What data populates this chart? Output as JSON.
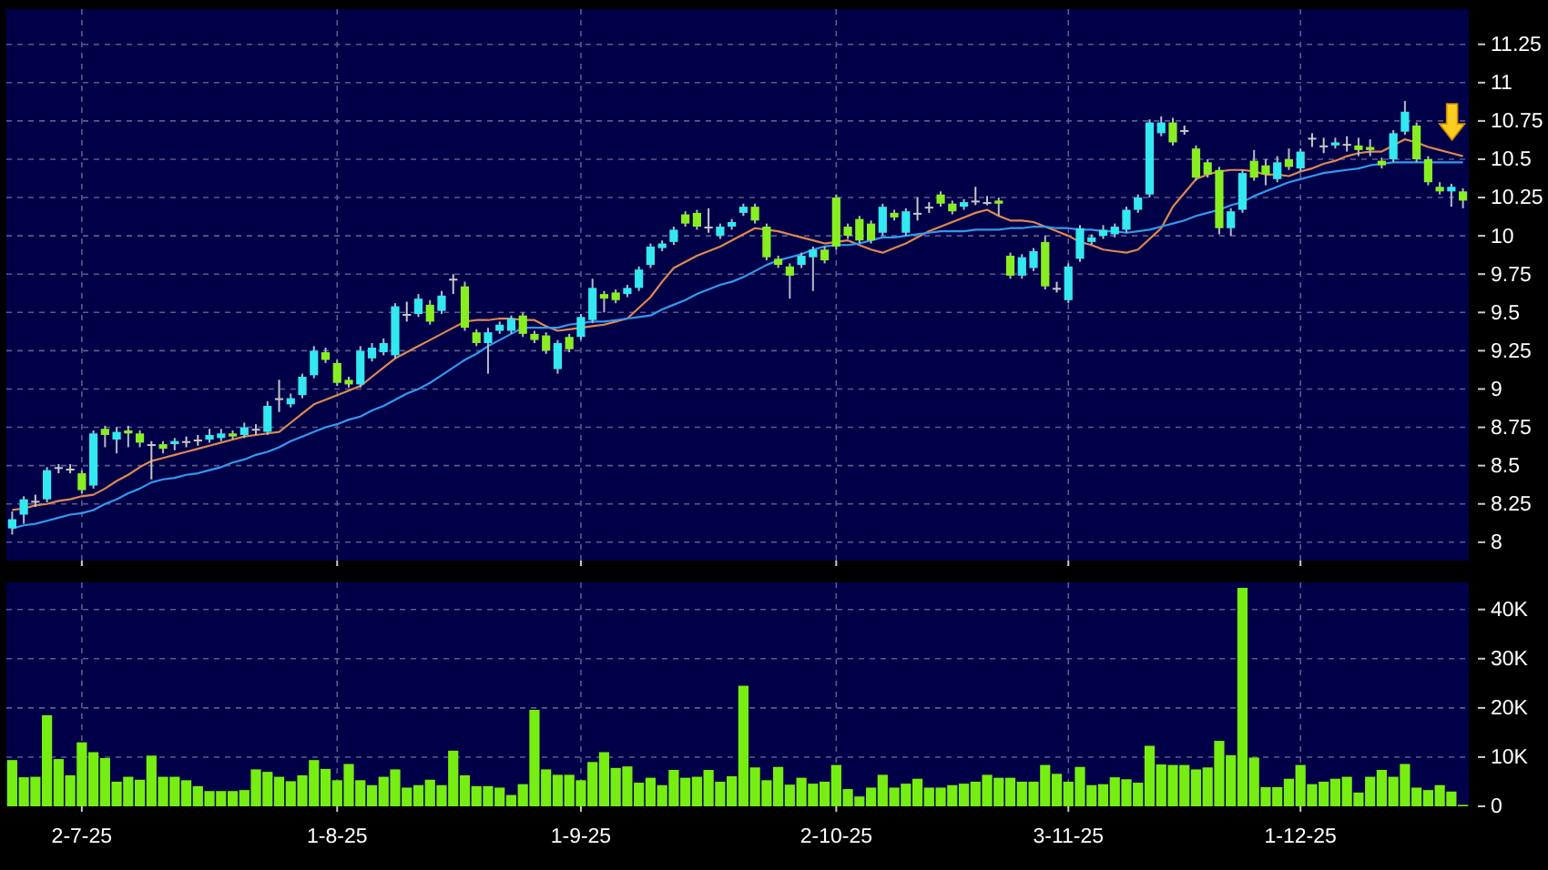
{
  "chart_data": [
    {
      "type": "candlestick",
      "grid": true,
      "tick_labels": "y",
      "categories": [
        null,
        null,
        null,
        null,
        null,
        null,
        null,
        null,
        null,
        null,
        null,
        null,
        null,
        null,
        null,
        null,
        null,
        null,
        null,
        null,
        null,
        null,
        null,
        null,
        null,
        null,
        null,
        null,
        null,
        null,
        null,
        null,
        null,
        null,
        null,
        null,
        null,
        null,
        null,
        null,
        null,
        null,
        null,
        null,
        null,
        null,
        null,
        null,
        null,
        null,
        null,
        null,
        null,
        null,
        null,
        null,
        null,
        null,
        null,
        null,
        null,
        null,
        null,
        null,
        null,
        null,
        null,
        null,
        null,
        null,
        null,
        null,
        null,
        null,
        null,
        null,
        null,
        null,
        null,
        null,
        null,
        null,
        null,
        null,
        null,
        null,
        null,
        null,
        null,
        null,
        null,
        null,
        null,
        null,
        null,
        null,
        null,
        null,
        null,
        null,
        null,
        null,
        null,
        null,
        null,
        null,
        null,
        null,
        null,
        null,
        null,
        null,
        null,
        null,
        null,
        null,
        null,
        null,
        null,
        null,
        null,
        null,
        null,
        null,
        null,
        null
      ],
      "ylim": [
        7.88,
        11.48
      ],
      "yticks": [
        8,
        8.25,
        8.5,
        8.75,
        9,
        9.25,
        9.5,
        9.75,
        10,
        10.25,
        10.5,
        10.75,
        11,
        11.25
      ],
      "ohlc": [
        [
          8.09,
          8.2,
          8.05,
          8.15
        ],
        [
          8.18,
          8.3,
          8.12,
          8.28
        ],
        [
          8.27,
          8.31,
          8.23,
          8.27
        ],
        [
          8.28,
          8.49,
          8.26,
          8.47
        ],
        [
          8.49,
          8.51,
          8.45,
          8.49
        ],
        [
          8.48,
          8.51,
          8.45,
          8.48
        ],
        [
          8.45,
          8.47,
          8.32,
          8.34
        ],
        [
          8.37,
          8.73,
          8.35,
          8.71
        ],
        [
          8.74,
          8.76,
          8.62,
          8.7
        ],
        [
          8.67,
          8.75,
          8.58,
          8.72
        ],
        [
          8.73,
          8.76,
          8.62,
          8.71
        ],
        [
          8.71,
          8.73,
          8.62,
          8.65
        ],
        [
          8.64,
          8.66,
          8.41,
          8.64
        ],
        [
          8.64,
          8.66,
          8.58,
          8.61
        ],
        [
          8.64,
          8.68,
          8.6,
          8.66
        ],
        [
          8.66,
          8.69,
          8.62,
          8.66
        ],
        [
          8.67,
          8.7,
          8.63,
          8.67
        ],
        [
          8.67,
          8.74,
          8.65,
          8.7
        ],
        [
          8.68,
          8.74,
          8.66,
          8.71
        ],
        [
          8.71,
          8.73,
          8.67,
          8.69
        ],
        [
          8.7,
          8.78,
          8.68,
          8.75
        ],
        [
          8.74,
          8.77,
          8.7,
          8.74
        ],
        [
          8.72,
          8.92,
          8.7,
          8.89
        ],
        [
          8.94,
          9.06,
          8.85,
          8.94
        ],
        [
          8.9,
          8.97,
          8.88,
          8.94
        ],
        [
          8.96,
          9.1,
          8.94,
          9.08
        ],
        [
          9.09,
          9.28,
          9.07,
          9.25
        ],
        [
          9.24,
          9.27,
          9.17,
          9.19
        ],
        [
          9.17,
          9.19,
          9.02,
          9.04
        ],
        [
          9.06,
          9.08,
          9.01,
          9.03
        ],
        [
          9.03,
          9.28,
          9.01,
          9.25
        ],
        [
          9.2,
          9.3,
          9.18,
          9.27
        ],
        [
          9.24,
          9.33,
          9.22,
          9.3
        ],
        [
          9.22,
          9.56,
          9.2,
          9.54
        ],
        [
          9.49,
          9.57,
          9.44,
          9.49
        ],
        [
          9.49,
          9.62,
          9.47,
          9.59
        ],
        [
          9.55,
          9.58,
          9.42,
          9.44
        ],
        [
          9.51,
          9.64,
          9.49,
          9.61
        ],
        [
          9.72,
          9.75,
          9.62,
          9.72
        ],
        [
          9.67,
          9.7,
          9.38,
          9.4
        ],
        [
          9.37,
          9.39,
          9.28,
          9.3
        ],
        [
          9.3,
          9.4,
          9.1,
          9.37
        ],
        [
          9.38,
          9.44,
          9.36,
          9.42
        ],
        [
          9.38,
          9.48,
          9.36,
          9.46
        ],
        [
          9.48,
          9.5,
          9.34,
          9.36
        ],
        [
          9.36,
          9.38,
          9.3,
          9.32
        ],
        [
          9.35,
          9.37,
          9.23,
          9.25
        ],
        [
          9.13,
          9.32,
          9.1,
          9.3
        ],
        [
          9.34,
          9.36,
          9.24,
          9.26
        ],
        [
          9.34,
          9.49,
          9.32,
          9.47
        ],
        [
          9.45,
          9.72,
          9.43,
          9.66
        ],
        [
          9.62,
          9.64,
          9.5,
          9.59
        ],
        [
          9.63,
          9.65,
          9.56,
          9.58
        ],
        [
          9.62,
          9.68,
          9.6,
          9.66
        ],
        [
          9.66,
          9.8,
          9.64,
          9.78
        ],
        [
          9.81,
          9.95,
          9.79,
          9.93
        ],
        [
          9.92,
          9.97,
          9.9,
          9.95
        ],
        [
          9.96,
          10.06,
          9.94,
          10.04
        ],
        [
          10.14,
          10.16,
          10.06,
          10.08
        ],
        [
          10.15,
          10.17,
          10.04,
          10.06
        ],
        [
          10.06,
          10.18,
          10.02,
          10.06
        ],
        [
          10,
          10.08,
          9.98,
          10.06
        ],
        [
          10.06,
          10.11,
          10.04,
          10.09
        ],
        [
          10.15,
          10.21,
          10.13,
          10.19
        ],
        [
          10.19,
          10.21,
          10.08,
          10.1
        ],
        [
          10.06,
          10.08,
          9.84,
          9.86
        ],
        [
          9.85,
          9.87,
          9.79,
          9.81
        ],
        [
          9.8,
          9.82,
          9.59,
          9.74
        ],
        [
          9.81,
          9.89,
          9.79,
          9.87
        ],
        [
          9.86,
          9.93,
          9.64,
          9.91
        ],
        [
          9.91,
          9.93,
          9.82,
          9.84
        ],
        [
          10.25,
          10.27,
          9.91,
          9.93
        ],
        [
          10.06,
          10.08,
          9.98,
          10
        ],
        [
          10.11,
          10.13,
          9.95,
          9.97
        ],
        [
          10.08,
          10.1,
          9.95,
          9.97
        ],
        [
          10.02,
          10.21,
          10,
          10.19
        ],
        [
          10.15,
          10.17,
          10.1,
          10.12
        ],
        [
          10.02,
          10.18,
          10,
          10.16
        ],
        [
          10.15,
          10.25,
          10.1,
          10.15
        ],
        [
          10.19,
          10.22,
          10.15,
          10.19
        ],
        [
          10.27,
          10.29,
          10.19,
          10.21
        ],
        [
          10.21,
          10.23,
          10.14,
          10.16
        ],
        [
          10.19,
          10.24,
          10.17,
          10.22
        ],
        [
          10.23,
          10.32,
          10.2,
          10.23
        ],
        [
          10.22,
          10.26,
          10.2,
          10.22
        ],
        [
          10.23,
          10.25,
          10.13,
          10.21
        ],
        [
          9.87,
          9.89,
          9.72,
          9.74
        ],
        [
          9.74,
          9.88,
          9.72,
          9.86
        ],
        [
          9.79,
          9.92,
          9.77,
          9.9
        ],
        [
          9.96,
          10,
          9.65,
          9.67
        ],
        [
          9.66,
          9.7,
          9.63,
          9.66
        ],
        [
          9.58,
          9.82,
          9.56,
          9.8
        ],
        [
          9.85,
          10.07,
          9.83,
          10.05
        ],
        [
          9.96,
          10.01,
          9.94,
          9.99
        ],
        [
          10,
          10.07,
          9.98,
          10.04
        ],
        [
          10.01,
          10.08,
          9.99,
          10.06
        ],
        [
          10.04,
          10.19,
          10.02,
          10.17
        ],
        [
          10.17,
          10.27,
          10.15,
          10.25
        ],
        [
          10.27,
          10.76,
          10.25,
          10.74
        ],
        [
          10.67,
          10.78,
          10.65,
          10.74
        ],
        [
          10.74,
          10.77,
          10.59,
          10.61
        ],
        [
          10.69,
          10.72,
          10.66,
          10.69
        ],
        [
          10.57,
          10.59,
          10.36,
          10.38
        ],
        [
          10.48,
          10.5,
          10.38,
          10.4
        ],
        [
          10.43,
          10.45,
          10.01,
          10.05
        ],
        [
          10.05,
          10.18,
          10,
          10.16
        ],
        [
          10.17,
          10.43,
          10.15,
          10.41
        ],
        [
          10.49,
          10.56,
          10.36,
          10.38
        ],
        [
          10.46,
          10.5,
          10.33,
          10.4
        ],
        [
          10.37,
          10.52,
          10.35,
          10.48
        ],
        [
          10.5,
          10.57,
          10.43,
          10.45
        ],
        [
          10.44,
          10.57,
          10.42,
          10.55
        ],
        [
          10.64,
          10.67,
          10.58,
          10.64
        ],
        [
          10.59,
          10.64,
          10.54,
          10.59
        ],
        [
          10.59,
          10.64,
          10.57,
          10.61
        ],
        [
          10.6,
          10.65,
          10.55,
          10.6
        ],
        [
          10.59,
          10.64,
          10.52,
          10.56
        ],
        [
          10.58,
          10.63,
          10.52,
          10.56
        ],
        [
          10.49,
          10.51,
          10.44,
          10.46
        ],
        [
          10.5,
          10.69,
          10.48,
          10.67
        ],
        [
          10.68,
          10.88,
          10.66,
          10.81
        ],
        [
          10.72,
          10.74,
          10.48,
          10.5
        ],
        [
          10.5,
          10.52,
          10.33,
          10.35
        ],
        [
          10.32,
          10.35,
          10.27,
          10.29
        ],
        [
          10.29,
          10.34,
          10.19,
          10.32
        ],
        [
          10.29,
          10.31,
          10.18,
          10.23
        ]
      ],
      "colors": [
        "#33e8f0",
        "#33e8f0",
        "#c8c8c8",
        "#33e8f0",
        "#c8c8c8",
        "#c8c8c8",
        "#88ee22",
        "#33e8f0",
        "#88ee22",
        "#33e8f0",
        "#88ee22",
        "#88ee22",
        "#c8c8c8",
        "#88ee22",
        "#33e8f0",
        "#c8c8c8",
        "#c8c8c8",
        "#33e8f0",
        "#33e8f0",
        "#88ee22",
        "#33e8f0",
        "#c8c8c8",
        "#33e8f0",
        "#c8c8c8",
        "#33e8f0",
        "#33e8f0",
        "#33e8f0",
        "#88ee22",
        "#88ee22",
        "#88ee22",
        "#33e8f0",
        "#33e8f0",
        "#33e8f0",
        "#33e8f0",
        "#c8c8c8",
        "#33e8f0",
        "#88ee22",
        "#33e8f0",
        "#c8c8c8",
        "#88ee22",
        "#88ee22",
        "#33e8f0",
        "#33e8f0",
        "#33e8f0",
        "#88ee22",
        "#88ee22",
        "#88ee22",
        "#33e8f0",
        "#88ee22",
        "#33e8f0",
        "#33e8f0",
        "#88ee22",
        "#88ee22",
        "#33e8f0",
        "#33e8f0",
        "#33e8f0",
        "#33e8f0",
        "#33e8f0",
        "#88ee22",
        "#88ee22",
        "#c8c8c8",
        "#33e8f0",
        "#33e8f0",
        "#33e8f0",
        "#88ee22",
        "#88ee22",
        "#88ee22",
        "#88ee22",
        "#33e8f0",
        "#33e8f0",
        "#88ee22",
        "#88ee22",
        "#88ee22",
        "#88ee22",
        "#88ee22",
        "#33e8f0",
        "#88ee22",
        "#33e8f0",
        "#c8c8c8",
        "#c8c8c8",
        "#88ee22",
        "#88ee22",
        "#33e8f0",
        "#c8c8c8",
        "#c8c8c8",
        "#88ee22",
        "#88ee22",
        "#33e8f0",
        "#33e8f0",
        "#88ee22",
        "#c8c8c8",
        "#33e8f0",
        "#33e8f0",
        "#33e8f0",
        "#33e8f0",
        "#33e8f0",
        "#33e8f0",
        "#33e8f0",
        "#33e8f0",
        "#33e8f0",
        "#88ee22",
        "#c8c8c8",
        "#88ee22",
        "#88ee22",
        "#88ee22",
        "#33e8f0",
        "#33e8f0",
        "#88ee22",
        "#88ee22",
        "#33e8f0",
        "#88ee22",
        "#33e8f0",
        "#c8c8c8",
        "#c8c8c8",
        "#33e8f0",
        "#c8c8c8",
        "#88ee22",
        "#88ee22",
        "#88ee22",
        "#33e8f0",
        "#33e8f0",
        "#88ee22",
        "#88ee22",
        "#88ee22",
        "#33e8f0",
        "#88ee22"
      ],
      "series": [
        {
          "type": "line",
          "color": "#e08850",
          "values": [
            8.21,
            8.22,
            8.24,
            8.25,
            8.27,
            8.28,
            8.3,
            8.31,
            8.35,
            8.4,
            8.44,
            8.49,
            8.53,
            8.55,
            8.57,
            8.59,
            8.61,
            8.63,
            8.65,
            8.67,
            8.69,
            8.7,
            8.71,
            8.72,
            8.78,
            8.84,
            8.9,
            8.93,
            8.96,
            8.99,
            9.02,
            9.08,
            9.14,
            9.2,
            9.24,
            9.28,
            9.32,
            9.36,
            9.4,
            9.44,
            9.45,
            9.45,
            9.46,
            9.46,
            9.45,
            9.45,
            9.41,
            9.38,
            9.39,
            9.4,
            9.41,
            9.42,
            9.44,
            9.46,
            9.53,
            9.6,
            9.7,
            9.79,
            9.83,
            9.87,
            9.9,
            9.93,
            9.97,
            10.01,
            10.05,
            10.04,
            10.03,
            10.01,
            9.99,
            9.97,
            9.95,
            9.96,
            9.97,
            9.94,
            9.91,
            9.89,
            9.92,
            9.95,
            9.99,
            10.03,
            10.06,
            10.09,
            10.12,
            10.15,
            10.17,
            10.13,
            10.1,
            10.1,
            10.09,
            10.06,
            10.03,
            10,
            9.96,
            9.94,
            9.91,
            9.9,
            9.89,
            9.91,
            9.98,
            10.05,
            10.19,
            10.28,
            10.37,
            10.4,
            10.42,
            10.43,
            10.43,
            10.42,
            10.4,
            10.4,
            10.39,
            10.42,
            10.44,
            10.47,
            10.49,
            10.52,
            10.54,
            10.55,
            10.55,
            10.59,
            10.63,
            10.61,
            10.58,
            10.56,
            10.54,
            10.52
          ]
        },
        {
          "type": "line",
          "color": "#3399ee",
          "values": [
            8.09,
            8.11,
            8.12,
            8.14,
            8.16,
            8.18,
            8.19,
            8.21,
            8.25,
            8.28,
            8.32,
            8.35,
            8.39,
            8.41,
            8.42,
            8.44,
            8.45,
            8.47,
            8.49,
            8.52,
            8.54,
            8.57,
            8.59,
            8.62,
            8.66,
            8.69,
            8.72,
            8.75,
            8.77,
            8.8,
            8.82,
            8.86,
            8.89,
            8.93,
            8.97,
            9,
            9.04,
            9.09,
            9.14,
            9.19,
            9.23,
            9.28,
            9.32,
            9.36,
            9.4,
            9.4,
            9.4,
            9.4,
            9.42,
            9.43,
            9.44,
            9.44,
            9.45,
            9.46,
            9.47,
            9.48,
            9.52,
            9.55,
            9.58,
            9.62,
            9.65,
            9.68,
            9.7,
            9.73,
            9.77,
            9.81,
            9.84,
            9.86,
            9.88,
            9.91,
            9.93,
            9.94,
            9.94,
            9.95,
            9.97,
            9.99,
            9.99,
            10,
            10.01,
            10.02,
            10.03,
            10.03,
            10.03,
            10.04,
            10.04,
            10.04,
            10.05,
            10.05,
            10.06,
            10.06,
            10.05,
            10.05,
            10.04,
            10.04,
            10.03,
            10.03,
            10.02,
            10.03,
            10.04,
            10.06,
            10.08,
            10.1,
            10.13,
            10.15,
            10.17,
            10.2,
            10.22,
            10.26,
            10.29,
            10.32,
            10.35,
            10.37,
            10.39,
            10.41,
            10.42,
            10.43,
            10.44,
            10.46,
            10.47,
            10.48,
            10.48,
            10.48,
            10.48,
            10.48,
            10.48,
            10.48
          ]
        }
      ]
    },
    {
      "type": "bar",
      "grid": true,
      "categories": [
        null,
        null,
        null,
        null,
        null,
        null,
        "2-7-25",
        null,
        null,
        null,
        null,
        null,
        null,
        null,
        null,
        null,
        null,
        null,
        null,
        null,
        null,
        null,
        null,
        null,
        null,
        null,
        null,
        null,
        "1-8-25",
        null,
        null,
        null,
        null,
        null,
        null,
        null,
        null,
        null,
        null,
        null,
        null,
        null,
        null,
        null,
        null,
        null,
        null,
        null,
        null,
        "1-9-25",
        null,
        null,
        null,
        null,
        null,
        null,
        null,
        null,
        null,
        null,
        null,
        null,
        null,
        null,
        null,
        null,
        null,
        null,
        null,
        null,
        null,
        "2-10-25",
        null,
        null,
        null,
        null,
        null,
        null,
        null,
        null,
        null,
        null,
        null,
        null,
        null,
        null,
        null,
        null,
        null,
        null,
        null,
        "3-11-25",
        null,
        null,
        null,
        null,
        null,
        null,
        null,
        null,
        null,
        null,
        null,
        null,
        null,
        null,
        null,
        null,
        null,
        null,
        null,
        "1-12-25",
        null,
        null,
        null,
        null,
        null,
        null,
        null,
        null,
        null,
        null,
        null,
        null,
        null,
        null
      ],
      "ylim": [
        0,
        45500
      ],
      "yticks": [
        0,
        {
          "value": 10000,
          "label": "10K"
        },
        {
          "value": 20000,
          "label": "20K"
        },
        {
          "value": 30000,
          "label": "30K"
        },
        {
          "value": 40000,
          "label": "40K"
        }
      ],
      "color": "#77ee11",
      "values": [
        9400,
        5900,
        6000,
        18500,
        9600,
        6300,
        13000,
        11000,
        9800,
        5000,
        6000,
        5400,
        10300,
        6000,
        6000,
        5300,
        4100,
        3100,
        3100,
        3100,
        3300,
        7500,
        7000,
        6000,
        5100,
        6300,
        9400,
        7600,
        5300,
        8600,
        5300,
        4300,
        6000,
        7500,
        3800,
        4300,
        5400,
        4300,
        11300,
        6300,
        4100,
        4100,
        3800,
        2300,
        4500,
        19600,
        7500,
        6400,
        6400,
        5300,
        9000,
        11000,
        7800,
        8100,
        4800,
        5800,
        4300,
        7400,
        5800,
        6000,
        7400,
        5000,
        6100,
        24500,
        7900,
        5300,
        8000,
        4400,
        5800,
        4600,
        5000,
        8400,
        3500,
        2000,
        3800,
        6400,
        3800,
        4600,
        5600,
        3800,
        3800,
        4300,
        4600,
        5000,
        6400,
        5800,
        5800,
        5000,
        5000,
        8400,
        6600,
        5000,
        8000,
        4300,
        4500,
        5900,
        5500,
        4800,
        12300,
        8500,
        8400,
        8400,
        7500,
        7900,
        13300,
        10400,
        44400,
        9900,
        3900,
        3900,
        5600,
        8400,
        4500,
        5000,
        5600,
        6000,
        2800,
        6000,
        7400,
        6000,
        8600,
        3800,
        3300,
        4300,
        3000,
        300
      ]
    }
  ]
}
